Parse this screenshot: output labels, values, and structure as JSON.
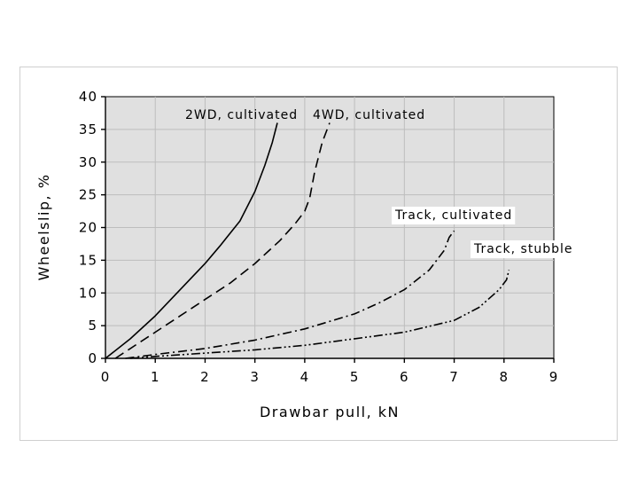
{
  "chart_data": {
    "type": "line",
    "xlabel": "Drawbar pull, kN",
    "ylabel": "Wheelslip, %",
    "xlim": [
      0,
      9
    ],
    "ylim": [
      0,
      40
    ],
    "xticks": [
      0,
      1,
      2,
      3,
      4,
      5,
      6,
      7,
      8,
      9
    ],
    "yticks": [
      0,
      5,
      10,
      15,
      20,
      25,
      30,
      35,
      40
    ],
    "grid": true,
    "background": "#e0e0e0",
    "series": [
      {
        "name": "2WD, cultivated",
        "dash": "solid",
        "x": [
          0,
          0.5,
          1.0,
          1.5,
          2.0,
          2.3,
          2.7,
          3.0,
          3.2,
          3.35,
          3.45
        ],
        "y": [
          0,
          3.0,
          6.5,
          10.5,
          14.5,
          17.2,
          21.0,
          25.5,
          29.5,
          33.0,
          36.0
        ]
      },
      {
        "name": "4WD, cultivated",
        "dash": "dashed",
        "x": [
          0.2,
          0.5,
          1.0,
          1.5,
          2.0,
          2.5,
          3.0,
          3.5,
          3.8,
          4.0,
          4.1,
          4.2,
          4.35,
          4.5
        ],
        "y": [
          0,
          1.5,
          4.0,
          6.5,
          9.0,
          11.5,
          14.5,
          18.0,
          20.5,
          22.5,
          24.5,
          28.5,
          33.0,
          36.0
        ]
      },
      {
        "name": "Track, cultivated",
        "dash": "dash-dot",
        "x": [
          0.4,
          1.0,
          2.0,
          3.0,
          4.0,
          5.0,
          5.5,
          6.0,
          6.5,
          6.8,
          6.9,
          7.0
        ],
        "y": [
          0,
          0.6,
          1.5,
          2.8,
          4.5,
          6.8,
          8.5,
          10.5,
          13.5,
          16.5,
          18.5,
          19.5
        ]
      },
      {
        "name": "Track, stubble",
        "dash": "dash-dot-dot",
        "x": [
          0.5,
          1.0,
          2.0,
          3.0,
          4.0,
          5.0,
          6.0,
          7.0,
          7.5,
          7.9,
          8.05,
          8.1
        ],
        "y": [
          0,
          0.3,
          0.8,
          1.3,
          2.0,
          3.0,
          4.0,
          5.8,
          7.8,
          10.5,
          12.0,
          13.5
        ]
      }
    ],
    "labels": [
      {
        "text": "2WD, cultivated",
        "box": false
      },
      {
        "text": "4WD, cultivated",
        "box": false
      },
      {
        "text": "Track, cultivated",
        "box": true
      },
      {
        "text": "Track, stubble",
        "box": true
      }
    ]
  }
}
